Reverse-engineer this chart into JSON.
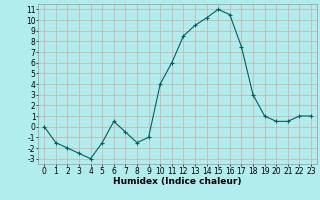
{
  "x": [
    0,
    1,
    2,
    3,
    4,
    5,
    6,
    7,
    8,
    9,
    10,
    11,
    12,
    13,
    14,
    15,
    16,
    17,
    18,
    19,
    20,
    21,
    22,
    23
  ],
  "y": [
    0,
    -1.5,
    -2,
    -2.5,
    -3,
    -1.5,
    0.5,
    -0.5,
    -1.5,
    -1,
    4,
    6,
    8.5,
    9.5,
    10.2,
    11,
    10.5,
    7.5,
    3,
    1,
    0.5,
    0.5,
    1,
    1
  ],
  "line_color": "#006060",
  "marker": "+",
  "background_color": "#b2eded",
  "grid_color": "#d4aaaa",
  "xlabel": "Humidex (Indice chaleur)",
  "ylim": [
    -3.5,
    11.5
  ],
  "xlim": [
    -0.5,
    23.5
  ],
  "yticks": [
    -3,
    -2,
    -1,
    0,
    1,
    2,
    3,
    4,
    5,
    6,
    7,
    8,
    9,
    10,
    11
  ],
  "xticks": [
    0,
    1,
    2,
    3,
    4,
    5,
    6,
    7,
    8,
    9,
    10,
    11,
    12,
    13,
    14,
    15,
    16,
    17,
    18,
    19,
    20,
    21,
    22,
    23
  ],
  "axis_fontsize": 5.5,
  "label_fontsize": 6.5
}
